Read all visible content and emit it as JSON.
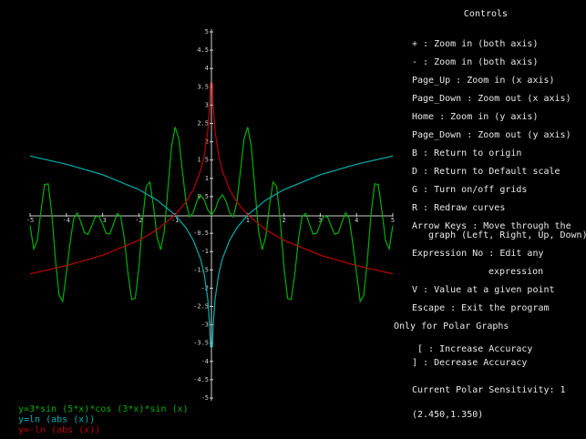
{
  "chart_data": {
    "type": "line",
    "xlim": [
      -5,
      5
    ],
    "ylim": [
      -5,
      5
    ],
    "xticks": [
      -5,
      -4,
      -3,
      -2,
      -1,
      1,
      2,
      3,
      4,
      5
    ],
    "yticks": [
      5,
      4.5,
      4,
      3.5,
      3,
      2.5,
      2,
      1.5,
      1,
      0.5,
      -0.5,
      -1,
      -1.5,
      -2,
      -2.5,
      -3,
      -3.5,
      -4,
      -4.5,
      -5
    ],
    "x": [
      -5,
      -4.9,
      -4.8,
      -4.7,
      -4.6,
      -4.5,
      -4.4,
      -4.3,
      -4.2,
      -4.1,
      -4,
      -3.9,
      -3.8,
      -3.7,
      -3.6,
      -3.5,
      -3.4,
      -3.3,
      -3.2,
      -3.1,
      -3,
      -2.9,
      -2.8,
      -2.7,
      -2.6,
      -2.5,
      -2.4,
      -2.3,
      -2.2,
      -2.1,
      -2,
      -1.9,
      -1.8,
      -1.7,
      -1.6,
      -1.5,
      -1.4,
      -1.3,
      -1.2,
      -1.1,
      -1,
      -0.9,
      -0.8,
      -0.7,
      -0.6,
      -0.5,
      -0.4,
      -0.3,
      -0.2,
      -0.1,
      0,
      0.1,
      0.2,
      0.3,
      0.4,
      0.5,
      0.6,
      0.7,
      0.8,
      0.9,
      1,
      1.1,
      1.2,
      1.3,
      1.4,
      1.5,
      1.6,
      1.7,
      1.8,
      1.9,
      2,
      2.1,
      2.2,
      2.3,
      2.4,
      2.5,
      2.6,
      2.7,
      2.8,
      2.9,
      3,
      3.1,
      3.2,
      3.3,
      3.4,
      3.5,
      3.6,
      3.7,
      3.8,
      3.9,
      4,
      4.1,
      4.2,
      4.3,
      4.4,
      4.5,
      4.6,
      4.7,
      4.8,
      4.9,
      5
    ],
    "series": [
      {
        "name": "y=3*sin (5*x)*cos (3*x)*sin (x)",
        "color": "#00b000",
        "values": [
          -0.29,
          -0.93,
          -0.7,
          0.11,
          0.83,
          0.85,
          0.02,
          -1.23,
          -2.19,
          -2.36,
          -1.59,
          -0.79,
          -0.11,
          0.06,
          -0.19,
          -0.49,
          -0.53,
          -0.3,
          -0.05,
          -0.03,
          -0.25,
          -0.5,
          -0.52,
          -0.25,
          0.04,
          -0.04,
          -0.66,
          -1.6,
          -2.31,
          -2.28,
          -1.43,
          -0.18,
          0.77,
          0.9,
          0.26,
          -0.59,
          -0.95,
          -0.45,
          0.71,
          1.86,
          2.4,
          2.08,
          1.2,
          0.343,
          -0.055,
          0.062,
          0.386,
          0.549,
          0.414,
          0.137,
          0,
          0.137,
          0.414,
          0.549,
          0.386,
          0.062,
          -0.055,
          0.343,
          1.2,
          2.08,
          2.4,
          1.86,
          0.71,
          -0.45,
          -0.95,
          -0.59,
          0.26,
          0.9,
          0.77,
          -0.18,
          -1.43,
          -2.28,
          -2.31,
          -1.6,
          -0.66,
          -0.04,
          0.04,
          -0.25,
          -0.52,
          -0.5,
          -0.25,
          -0.03,
          -0.05,
          -0.3,
          -0.53,
          -0.49,
          -0.19,
          0.06,
          -0.11,
          -0.79,
          -1.59,
          -2.36,
          -2.19,
          -1.23,
          0.02,
          0.85,
          0.83,
          0.11,
          -0.7,
          -0.93,
          -0.29
        ]
      },
      {
        "name": "y=ln (abs (x))",
        "color": "#00b0b0",
        "x": [
          -5,
          -4,
          -3,
          -2,
          -1.5,
          -1,
          -0.7,
          -0.5,
          -0.3,
          -0.2,
          -0.1,
          -0.05,
          -0.027,
          0,
          0.027,
          0.05,
          0.1,
          0.2,
          0.3,
          0.5,
          0.7,
          1,
          1.5,
          2,
          3,
          4,
          5
        ],
        "values": [
          1.609,
          1.386,
          1.099,
          0.693,
          0.405,
          0,
          -0.357,
          -0.693,
          -1.204,
          -1.609,
          -2.303,
          -2.996,
          -3.612,
          null,
          -3.612,
          -2.996,
          -2.303,
          -1.609,
          -1.204,
          -0.693,
          -0.357,
          0,
          0.405,
          0.693,
          1.099,
          1.386,
          1.609
        ]
      },
      {
        "name": "y=-ln (abs (x))",
        "color": "#c00000",
        "x": [
          -5,
          -4,
          -3,
          -2,
          -1.5,
          -1,
          -0.7,
          -0.5,
          -0.3,
          -0.2,
          -0.1,
          -0.05,
          -0.027,
          0,
          0.027,
          0.05,
          0.1,
          0.2,
          0.3,
          0.5,
          0.7,
          1,
          1.5,
          2,
          3,
          4,
          5
        ],
        "values": [
          -1.609,
          -1.386,
          -1.099,
          -0.693,
          -0.405,
          0,
          0.357,
          0.693,
          1.204,
          1.609,
          2.303,
          2.996,
          3.612,
          null,
          3.612,
          2.996,
          2.303,
          1.609,
          1.204,
          0.693,
          0.357,
          0,
          -0.405,
          -0.693,
          -1.099,
          -1.386,
          -1.609
        ]
      }
    ]
  },
  "controls": {
    "title": "Controls",
    "items": [
      "+ : Zoom in (both axis)",
      "- : Zoom in (both axis)",
      "Page_Up : Zoom in (x axis)",
      "Page_Down : Zoom out (x axis)",
      "Home : Zoom in (y axis)",
      "Page_Down : Zoom out (y axis)",
      "B : Return to origin",
      "D : Return to Default scale",
      "G : Turn on/off grids",
      "R : Redraw curves",
      "Arrow Keys : Move through the",
      "graph (Left, Right, Up, Down)",
      "Expression No : Edit any",
      "expression",
      "V : Value at a given point",
      "Escape : Exit the program",
      "Only for Polar Graphs",
      "[ : Increase Accuracy",
      "] : Decrease Accuracy",
      "Current Polar Sensitivity: 1",
      "(2.450,1.350)"
    ]
  }
}
